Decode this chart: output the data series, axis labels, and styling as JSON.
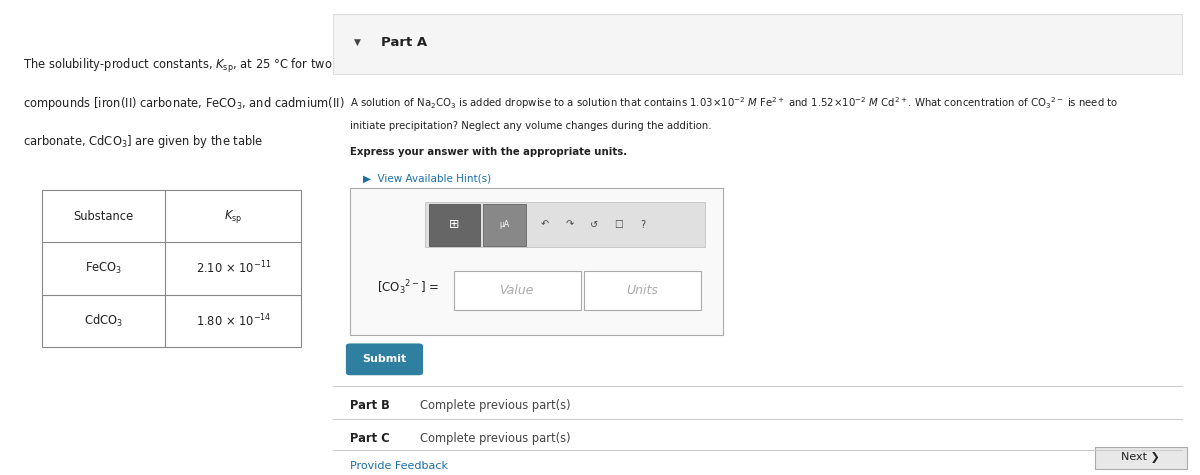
{
  "bg_left": "#ddeef6",
  "bg_right": "#ffffff",
  "left_panel_text_line1": "The solubility-product constants, $K_{\\mathrm{sp}}$, at 25 °C for two",
  "left_panel_text_line2": "compounds [iron(II) carbonate, FeCO$_3$, and cadmium(II)",
  "left_panel_text_line3": "carbonate, CdCO$_3$] are given by the table",
  "table_headers": [
    "Substance",
    "$K_{\\mathrm{sp}}$"
  ],
  "table_rows": [
    [
      "FeCO$_3$",
      "2.10 × 10$^{-11}$"
    ],
    [
      "CdCO$_3$",
      "1.80 × 10$^{-14}$"
    ]
  ],
  "part_a_header": "Part A",
  "part_a_body_line1": "A solution of Na$_2$CO$_3$ is added dropwise to a solution that contains 1.03×10$^{-2}$ $M$ Fe$^{2+}$ and 1.52×10$^{-2}$ $M$ Cd$^{2+}$. What concentration of CO$_3$$^{2-}$ is need to",
  "part_a_body_line2": "initiate precipitation? Neglect any volume changes during the addition.",
  "bold_line": "Express your answer with the appropriate units.",
  "hint_text": "View Available Hint(s)",
  "input_label": "[CO$_3$$^{2-}$] =",
  "value_placeholder": "Value",
  "units_placeholder": "Units",
  "submit_text": "Submit",
  "part_b_label": "Part B",
  "part_b_text": "Complete previous part(s)",
  "part_c_label": "Part C",
  "part_c_text": "Complete previous part(s)",
  "feedback_text": "Provide Feedback",
  "next_text": "Next ❯",
  "submit_color": "#2e7fa0",
  "hint_color": "#1a6fa8",
  "feedback_color": "#1a6fa8",
  "divider_color": "#cccccc",
  "part_a_header_bg": "#f5f5f5",
  "part_a_header_border": "#dddddd",
  "next_btn_bg": "#e8e8e8",
  "next_btn_border": "#aaaaaa",
  "table_border": "#888888",
  "input_outer_border": "#aaaaaa",
  "input_field_border": "#aaaaaa",
  "toolbar_bg": "#e0e0e0",
  "toolbar_border": "#bbbbbb",
  "btn1_color": "#666666",
  "btn2_color": "#888888"
}
